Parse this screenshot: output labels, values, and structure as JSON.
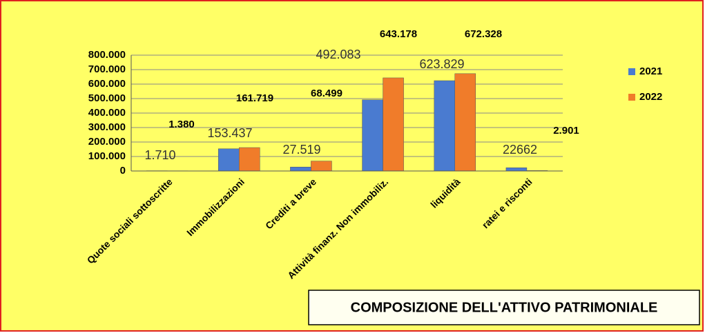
{
  "chart_data": {
    "type": "bar",
    "title": "COMPOSIZIONE DELL'ATTIVO PATRIMONIALE",
    "categories": [
      "Quote sociali sottoscritte",
      "Immobilizzazioni",
      "Crediti a breve",
      "Attività finanz. Non immobiliz.",
      "liquidità",
      "ratei e risconti"
    ],
    "series": [
      {
        "name": "2021",
        "color": "#4a7bd0",
        "values": [
          1710,
          153437,
          27519,
          492083,
          623829,
          22662
        ],
        "value_labels": [
          "1.710",
          "153.437",
          "27.519",
          "492.083",
          "623.829",
          "22662"
        ]
      },
      {
        "name": "2022",
        "color": "#f07c2a",
        "values": [
          1380,
          161719,
          68499,
          643178,
          672328,
          2901
        ],
        "value_labels": [
          "1.380",
          "161.719",
          "68.499",
          "643.178",
          "672.328",
          "2.901"
        ]
      }
    ],
    "ylim": [
      0,
      800000
    ],
    "yticks": [
      0,
      {
        "value": 100000,
        "label": "100.000"
      },
      {
        "value": 200000,
        "label": "200.000"
      },
      {
        "value": 300000,
        "label": "300.000"
      },
      {
        "value": 400000,
        "label": "400.000"
      },
      {
        "value": 500000,
        "label": "500.000"
      },
      {
        "value": 600000,
        "label": "600.000"
      },
      {
        "value": 700000,
        "label": "700.000"
      },
      {
        "value": 800000,
        "label": "800.000"
      }
    ],
    "grid": true,
    "legend": "right"
  }
}
